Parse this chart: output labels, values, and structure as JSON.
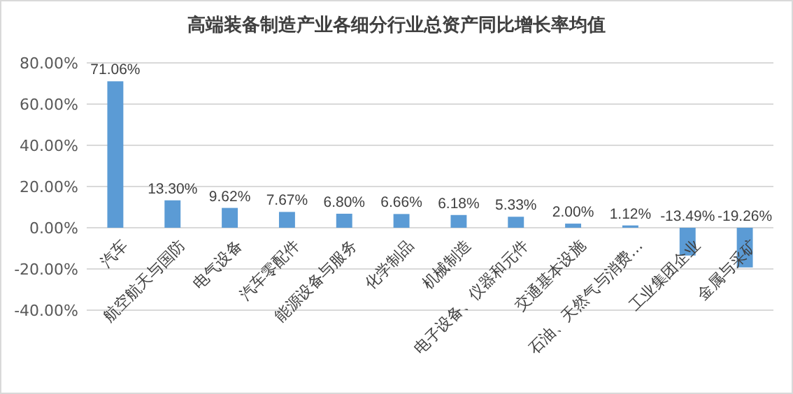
{
  "chart_data": {
    "type": "bar",
    "title": "高端装备制造产业各细分行业总资产同比增长率均值",
    "categories": [
      "汽车",
      "航空航天与国防",
      "电气设备",
      "汽车零配件",
      "能源设备与服务",
      "化学制品",
      "机械制造",
      "电子设备、仪器和元件",
      "交通基本设施",
      "石油、天然气与消费…",
      "工业集团企业",
      "金属与采矿"
    ],
    "values": [
      71.06,
      13.3,
      9.62,
      7.67,
      6.8,
      6.66,
      6.18,
      5.33,
      2.0,
      1.12,
      -13.49,
      -19.26
    ],
    "value_labels": [
      "71.06%",
      "13.30%",
      "9.62%",
      "7.67%",
      "6.80%",
      "6.66%",
      "6.18%",
      "5.33%",
      "2.00%",
      "1.12%",
      "-13.49%",
      "-19.26%"
    ],
    "color": "#5b9bd5",
    "ylim": [
      -40,
      80
    ],
    "yticks": [
      {
        "value": -40,
        "label": "-40.00%"
      },
      {
        "value": -20,
        "label": "-20.00%"
      },
      {
        "value": 0,
        "label": "0.00%"
      },
      {
        "value": 20,
        "label": "20.00%"
      },
      {
        "value": 40,
        "label": "40.00%"
      },
      {
        "value": 60,
        "label": "60.00%"
      },
      {
        "value": 80,
        "label": "80.00%"
      }
    ],
    "grid": "y"
  }
}
